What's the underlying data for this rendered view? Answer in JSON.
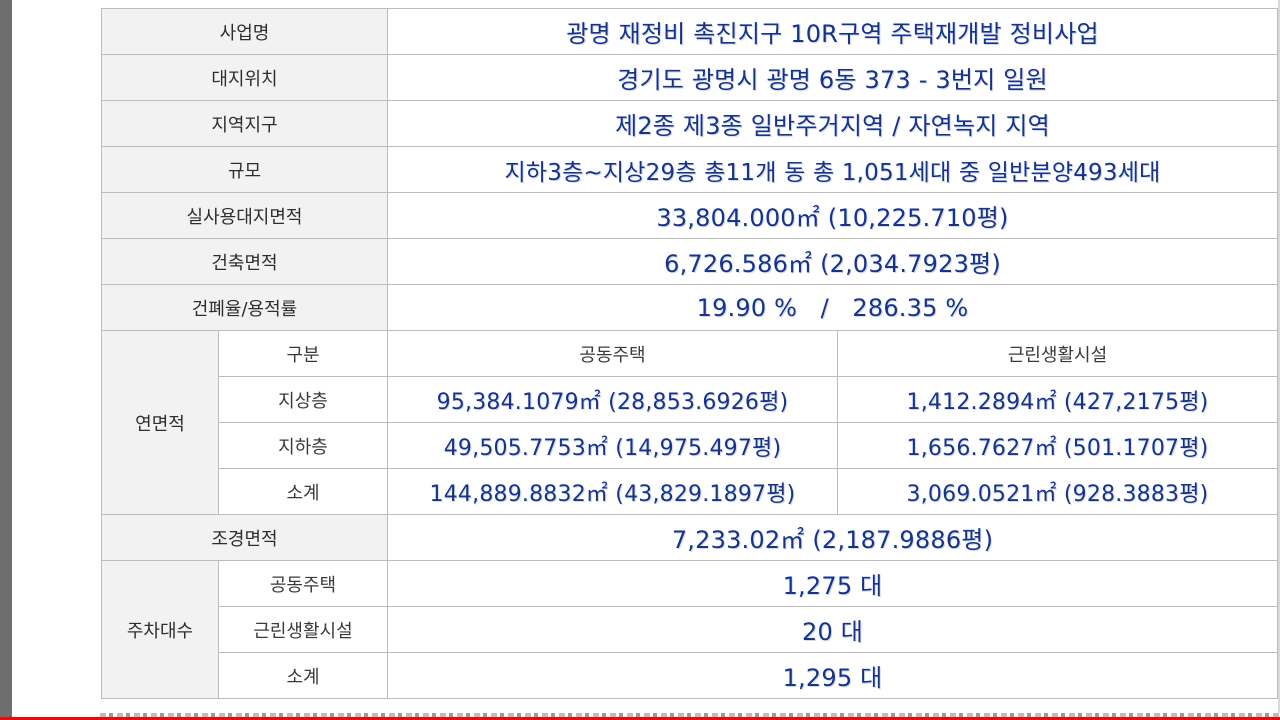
{
  "rows": {
    "project_name": {
      "label": "사업명",
      "value": "광명 재정비 촉진지구 10R구역 주택재개발 정비사업"
    },
    "site_location": {
      "label": "대지위치",
      "value": "경기도 광명시 광명 6동 373 - 3번지 일원"
    },
    "zoning": {
      "label": "지역지구",
      "value": "제2종 제3종 일반주거지역 / 자연녹지 지역"
    },
    "scale": {
      "label": "규모",
      "value": "지하3층~지상29층 총11개 동 총 1,051세대 중 일반분양493세대"
    },
    "site_area": {
      "label": "실사용대지면적",
      "value": "33,804.000㎡ (10,225.710평)"
    },
    "building_area": {
      "label": "건축면적",
      "value": "6,726.586㎡ (2,034.7923평)"
    },
    "coverage_ratio": {
      "label": "건폐율/용적률",
      "value": "19.90 %   /   286.35 %"
    },
    "landscape_area": {
      "label": "조경면적",
      "value": "7,233.02㎡ (2,187.9886평)"
    }
  },
  "floor_area": {
    "label": "연면적",
    "header": {
      "category": "구분",
      "apartment": "공동주택",
      "retail": "근린생활시설"
    },
    "above": {
      "label": "지상층",
      "apartment": "95,384.1079㎡ (28,853.6926평)",
      "retail": "1,412.2894㎡ (427,2175평)"
    },
    "below": {
      "label": "지하층",
      "apartment": "49,505.7753㎡ (14,975.497평)",
      "retail": "1,656.7627㎡ (501.1707평)"
    },
    "subtotal": {
      "label": "소계",
      "apartment": "144,889.8832㎡ (43,829.1897평)",
      "retail": "3,069.0521㎡ (928.3883평)"
    }
  },
  "parking": {
    "label": "주차대수",
    "apartment": {
      "label": "공동주택",
      "value": "1,275 대"
    },
    "retail": {
      "label": "근린생활시설",
      "value": "20 대"
    },
    "subtotal": {
      "label": "소계",
      "value": "1,295 대"
    }
  }
}
